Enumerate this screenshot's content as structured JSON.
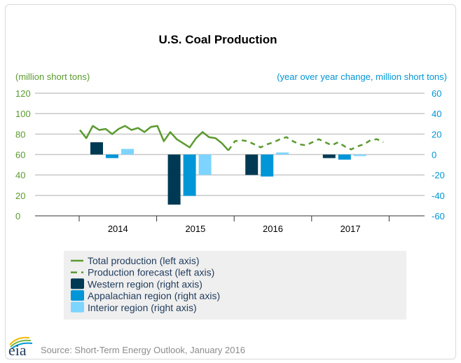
{
  "chart_data": {
    "type": "bar+line",
    "title": "U.S. Coal Production",
    "left_axis_label": "(million short tons)",
    "right_axis_label": "(year over year change, million short tons)",
    "left_ylim": [
      0,
      120
    ],
    "left_ticks": [
      0,
      20,
      40,
      60,
      80,
      100,
      120
    ],
    "right_ylim": [
      -60,
      60
    ],
    "right_ticks": [
      -60,
      -40,
      -20,
      0,
      20,
      40,
      60
    ],
    "categories": [
      "2014",
      "2015",
      "2016",
      "2017"
    ],
    "grid": true,
    "legend_placement": "bottom",
    "colors": {
      "total": "#5b9a2f",
      "forecast": "#5b9a2f",
      "western": "#003953",
      "appalachian": "#0096d7",
      "interior": "#7dd4ff",
      "left_axis": "#5b9a2f",
      "right_axis": "#0096d6"
    },
    "monthly_series": [
      {
        "name": "Total production (left axis)",
        "style": "solid",
        "start": "2014-01",
        "values": [
          84,
          76,
          88,
          84,
          85,
          80,
          85,
          88,
          84,
          86,
          82,
          87,
          88,
          73,
          82,
          75,
          71,
          67,
          76,
          82,
          77,
          76,
          71,
          64
        ]
      },
      {
        "name": "Production forecast (left axis)",
        "style": "dashed",
        "start": "2016-01",
        "values": [
          73,
          74,
          73,
          70,
          67,
          70,
          72,
          75,
          77,
          73,
          70,
          69,
          72,
          75,
          72,
          69,
          72,
          68,
          65,
          68,
          70,
          74,
          75,
          72
        ]
      }
    ],
    "series": [
      {
        "name": "Western region (right axis)",
        "values": [
          12,
          -49,
          -20,
          -3.5
        ]
      },
      {
        "name": "Appalachian region (right axis)",
        "values": [
          -3.5,
          -40.5,
          -21.5,
          -5
        ]
      },
      {
        "name": "Interior region (right axis)",
        "values": [
          5.5,
          -20,
          2,
          -1.5
        ]
      }
    ]
  },
  "legend": [
    {
      "label": "Total production (left axis)",
      "kind": "line"
    },
    {
      "label": "Production forecast (left axis)",
      "kind": "dash"
    },
    {
      "label": "Western region (right axis)",
      "kind": "box",
      "key": "western"
    },
    {
      "label": "Appalachian region (right axis)",
      "kind": "box",
      "key": "appalachian"
    },
    {
      "label": "Interior region (right axis)",
      "kind": "box",
      "key": "interior"
    }
  ],
  "footer": {
    "logo": "eia",
    "source": "Source: Short-Term Energy Outlook, January 2016"
  }
}
